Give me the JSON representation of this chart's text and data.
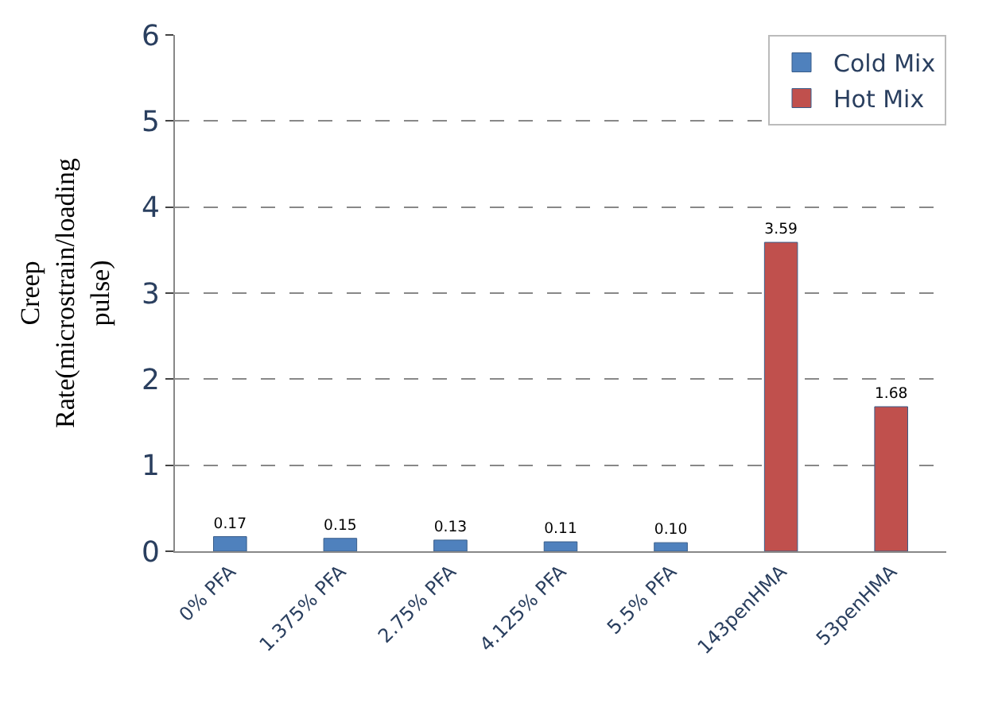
{
  "chart_data": {
    "type": "bar",
    "ylabel": "Creep\nRate(microstrain/loading\npulse)",
    "categories": [
      "0% PFA",
      "1.375% PFA",
      "2.75% PFA",
      "4.125% PFA",
      "5.5% PFA",
      "143penHMA",
      "53penHMA"
    ],
    "series": [
      {
        "name": "Cold Mix",
        "color": "#4f81bd",
        "values": [
          0.17,
          0.15,
          0.13,
          0.11,
          0.1,
          null,
          null
        ],
        "value_labels": [
          "0.17",
          "0.15",
          "0.13",
          "0.11",
          "0.10",
          null,
          null
        ]
      },
      {
        "name": "Hot Mix",
        "color": "#c0504d",
        "values": [
          null,
          null,
          null,
          null,
          null,
          3.59,
          1.68
        ],
        "value_labels": [
          null,
          null,
          null,
          null,
          null,
          "3.59",
          "1.68"
        ]
      }
    ],
    "ylim": [
      0,
      6
    ],
    "yticks": [
      0,
      1,
      2,
      3,
      4,
      5,
      6
    ],
    "grid": "y",
    "legend": "top right"
  }
}
